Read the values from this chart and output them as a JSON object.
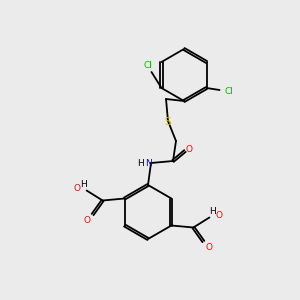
{
  "bg": "#ebebeb",
  "bond_color": "#000000",
  "lw": 1.3,
  "colors": {
    "C": "#000000",
    "H": "#000000",
    "N": "#0000ff",
    "O": "#ff0000",
    "S": "#ccbb00",
    "Cl": "#00bb00"
  },
  "fs": 6.5,
  "fs_small": 5.8
}
